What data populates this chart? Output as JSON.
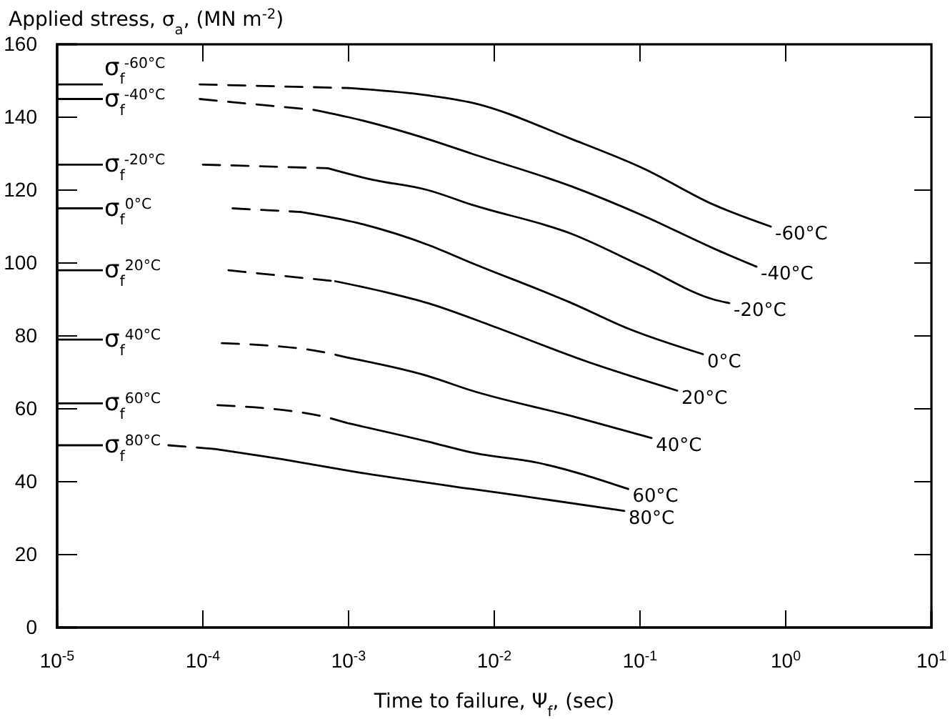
{
  "chart_data": {
    "type": "line",
    "xlabel": "Time to failure, Ψ$_{f}$, (sec)",
    "ylabel": "Applied stress, σ$_{a}$, (MN m$^{-2}$)",
    "log": "x",
    "xlim": [
      1e-05,
      10
    ],
    "xticks": [
      {
        "value": 1e-05,
        "label": "10$^{-5}$"
      },
      {
        "value": 0.0001,
        "label": "10$^{-4}$"
      },
      {
        "value": 0.001,
        "label": "10$^{-3}$"
      },
      {
        "value": 0.01,
        "label": "10$^{-2}$"
      },
      {
        "value": 0.1,
        "label": "10$^{-1}$"
      },
      {
        "value": 1,
        "label": "10$^{0}$"
      },
      {
        "value": 10,
        "label": "10$^{1}$"
      }
    ],
    "ylim": [
      0,
      160
    ],
    "yticks": [
      0,
      20,
      40,
      60,
      80,
      100,
      120,
      140,
      160
    ],
    "grid": false,
    "legend": false,
    "marker": "none",
    "series": [
      {
        "color": "#000000",
        "line_style": "dashed",
        "x": [
          9.5e-05,
          0.001
        ],
        "values": [
          149,
          148
        ]
      },
      {
        "name": "-60°C",
        "color": "#000000",
        "line_style": "solid",
        "x": [
          0.001,
          0.0035,
          0.007,
          0.034,
          0.105,
          0.32,
          0.79
        ],
        "values": [
          148,
          146,
          144,
          134,
          126,
          116,
          110
        ]
      },
      {
        "color": "#000000",
        "line_style": "dashed",
        "x": [
          9.5e-05,
          0.00058
        ],
        "values": [
          145,
          142
        ]
      },
      {
        "name": "-40°C",
        "color": "#000000",
        "line_style": "solid",
        "x": [
          0.00058,
          0.001,
          0.0035,
          0.007,
          0.034,
          0.105,
          0.32,
          0.63
        ],
        "values": [
          142,
          140,
          134,
          130,
          121,
          113,
          104,
          99
        ]
      },
      {
        "color": "#000000",
        "line_style": "dashed",
        "x": [
          0.0001,
          0.00072
        ],
        "values": [
          127,
          126
        ]
      },
      {
        "name": "-20°C",
        "color": "#000000",
        "line_style": "solid",
        "x": [
          0.00072,
          0.0014,
          0.0035,
          0.007,
          0.034,
          0.105,
          0.32,
          0.41
        ],
        "values": [
          126,
          123,
          120,
          116,
          108,
          99,
          90,
          89
        ]
      },
      {
        "color": "#000000",
        "line_style": "dashed",
        "x": [
          0.00016,
          0.00047
        ],
        "values": [
          115,
          114
        ]
      },
      {
        "name": "0°C",
        "color": "#000000",
        "line_style": "solid",
        "x": [
          0.00047,
          0.00115,
          0.0035,
          0.007,
          0.034,
          0.083,
          0.27
        ],
        "values": [
          114,
          111,
          105,
          100,
          89,
          82,
          75
        ]
      },
      {
        "color": "#000000",
        "line_style": "dashed",
        "x": [
          0.00015,
          0.00081
        ],
        "values": [
          98,
          95
        ]
      },
      {
        "name": "20°C",
        "color": "#000000",
        "line_style": "solid",
        "x": [
          0.00081,
          0.0018,
          0.0035,
          0.0093,
          0.043,
          0.18
        ],
        "values": [
          95,
          92,
          89,
          83,
          73,
          65
        ]
      },
      {
        "color": "#000000",
        "line_style": "dashed",
        "x": [
          0.000135,
          0.00058,
          0.001
        ],
        "values": [
          78,
          76,
          74
        ]
      },
      {
        "name": "40°C",
        "color": "#000000",
        "line_style": "solid",
        "x": [
          0.001,
          0.0035,
          0.007,
          0.034,
          0.12
        ],
        "values": [
          74,
          69,
          65,
          58,
          52
        ]
      },
      {
        "color": "#000000",
        "line_style": "dashed",
        "x": [
          0.000126,
          0.00065,
          0.001
        ],
        "values": [
          61,
          58,
          56
        ]
      },
      {
        "name": "60°C",
        "color": "#000000",
        "line_style": "solid",
        "x": [
          0.001,
          0.0035,
          0.007,
          0.021,
          0.083
        ],
        "values": [
          56,
          51,
          48,
          45,
          38
        ]
      },
      {
        "color": "#000000",
        "line_style": "dashed",
        "x": [
          5.8e-05,
          0.00012
        ],
        "values": [
          50,
          49
        ]
      },
      {
        "name": "80°C",
        "color": "#000000",
        "line_style": "solid",
        "x": [
          0.00012,
          0.00037,
          0.001,
          0.007,
          0.016,
          0.078
        ],
        "values": [
          49,
          46,
          43,
          38,
          36,
          32
        ]
      }
    ],
    "ref_lines": [
      {
        "axis": "y",
        "value": 149,
        "label": "σ$_{f}$$^{-60°C}$"
      },
      {
        "axis": "y",
        "value": 145,
        "label": "σ$_{f}$$^{-40°C}$"
      },
      {
        "axis": "y",
        "value": 127,
        "label": "σ$_{f}$$^{-20°C}$"
      },
      {
        "axis": "y",
        "value": 115,
        "label": "σ$_{f}$$^{0°C}$"
      },
      {
        "axis": "y",
        "value": 98,
        "label": "σ$_{f}$$^{20°C}$"
      },
      {
        "axis": "y",
        "value": 79,
        "label": "σ$_{f}$$^{40°C}$"
      },
      {
        "axis": "y",
        "value": 61.5,
        "label": "σ$_{f}$$^{60°C}$"
      },
      {
        "axis": "y",
        "value": 50,
        "label": "σ$_{f}$$^{80°C}$"
      }
    ]
  }
}
